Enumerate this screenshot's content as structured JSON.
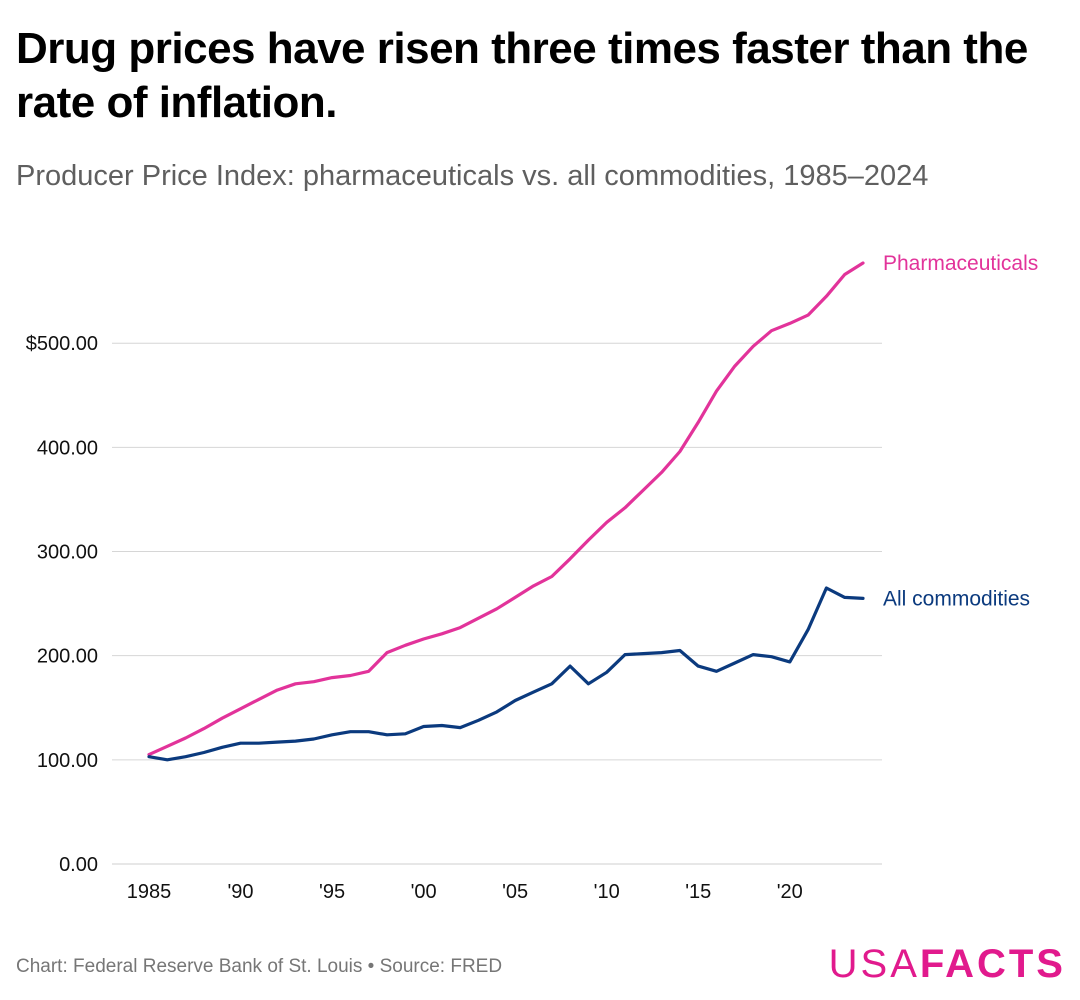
{
  "header": {
    "title": "Drug prices have risen three times faster than the rate of inflation.",
    "subtitle": "Producer Price Index: pharmaceuticals vs. all commodities, 1985–2024"
  },
  "footer": {
    "source": "Chart: Federal Reserve Bank of St. Louis • Source: FRED",
    "logo_part1": "USA",
    "logo_part2": "FACTS"
  },
  "colors": {
    "pharma": "#e2339a",
    "commodities": "#0b3a7e",
    "grid": "#d6d6d6",
    "brand": "#e11a8d"
  },
  "chart_data": {
    "type": "line",
    "x": [
      1985,
      1986,
      1987,
      1988,
      1989,
      1990,
      1991,
      1992,
      1993,
      1994,
      1995,
      1996,
      1997,
      1998,
      1999,
      2000,
      2001,
      2002,
      2003,
      2004,
      2005,
      2006,
      2007,
      2008,
      2009,
      2010,
      2011,
      2012,
      2013,
      2014,
      2015,
      2016,
      2017,
      2018,
      2019,
      2020,
      2021,
      2022,
      2023,
      2024
    ],
    "series": [
      {
        "name": "Pharmaceuticals",
        "values": [
          105,
          113,
          121,
          130,
          140,
          149,
          158,
          167,
          173,
          175,
          179,
          181,
          185,
          203,
          210,
          216,
          221,
          227,
          236,
          245,
          256,
          267,
          276,
          293,
          311,
          328,
          342,
          359,
          376,
          396,
          424,
          454,
          478,
          497,
          512,
          519,
          527,
          545,
          566,
          577
        ]
      },
      {
        "name": "All commodities",
        "values": [
          103,
          100,
          103,
          107,
          112,
          116,
          116,
          117,
          118,
          120,
          124,
          127,
          127,
          124,
          125,
          132,
          133,
          131,
          138,
          146,
          157,
          165,
          173,
          190,
          173,
          184,
          201,
          202,
          203,
          205,
          190,
          185,
          193,
          201,
          199,
          194,
          225,
          265,
          256,
          255
        ]
      }
    ],
    "y_ticks": [
      0,
      100,
      200,
      300,
      400,
      500
    ],
    "y_tick_labels": [
      "0.00",
      "100.00",
      "200.00",
      "300.00",
      "400.00",
      "$500.00"
    ],
    "x_ticks": [
      1985,
      1990,
      1995,
      2000,
      2005,
      2010,
      2015,
      2020
    ],
    "x_tick_labels": [
      "1985",
      "'90",
      "'95",
      "'00",
      "'05",
      "'10",
      "'15",
      "'20"
    ],
    "xlim": [
      1985,
      2024
    ],
    "ylim": [
      0,
      577
    ],
    "grid": true,
    "legend": "end-of-line labels",
    "xlabel": "",
    "ylabel": ""
  }
}
